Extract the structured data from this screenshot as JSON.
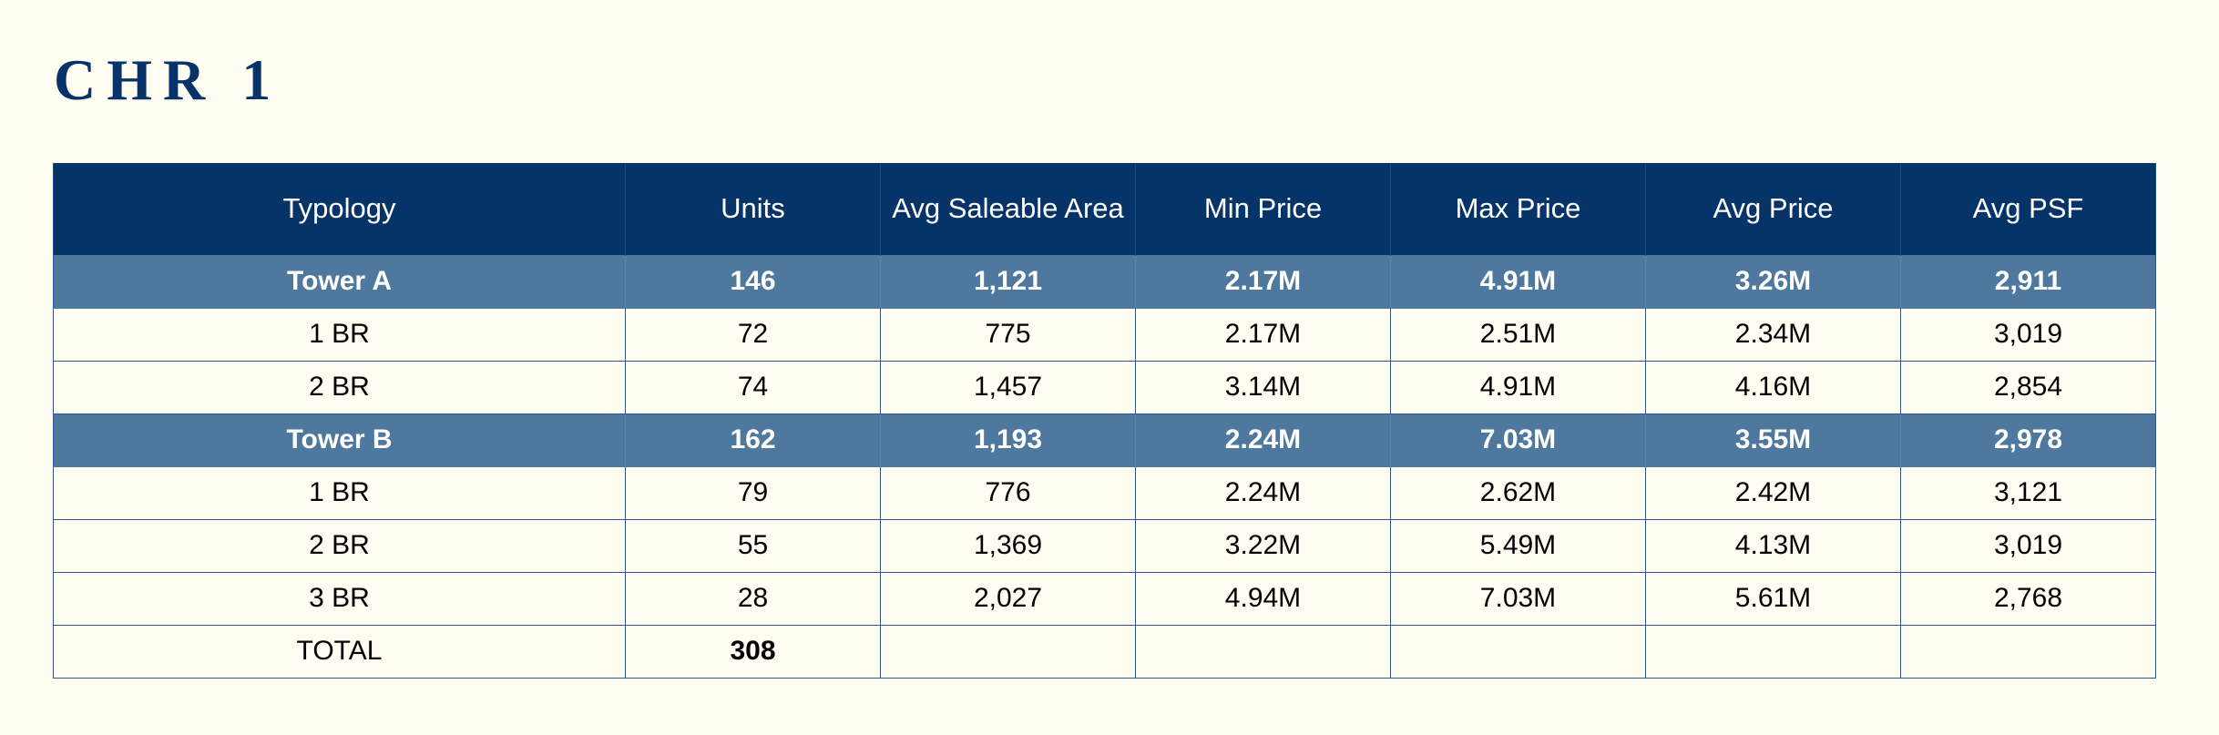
{
  "page": {
    "title": "CHR 1"
  },
  "colors": {
    "background": "#fffdf1",
    "header_bg": "#073468",
    "group_bg": "#4e789d",
    "title": "#08336a"
  },
  "table": {
    "headers": [
      "Typology",
      "Units",
      "Avg Saleable Area",
      "Min Price",
      "Max Price",
      "Avg Price",
      "Avg PSF"
    ],
    "rows": [
      [
        "Tower A",
        "146",
        "1,121",
        "2.17M",
        "4.91M",
        "3.26M",
        "2,911"
      ],
      [
        "1 BR",
        "72",
        "775",
        "2.17M",
        "2.51M",
        "2.34M",
        "3,019"
      ],
      [
        "2 BR",
        "74",
        "1,457",
        "3.14M",
        "4.91M",
        "4.16M",
        "2,854"
      ],
      [
        "Tower B",
        "162",
        "1,193",
        "2.24M",
        "7.03M",
        "3.55M",
        "2,978"
      ],
      [
        "1 BR",
        "79",
        "776",
        "2.24M",
        "2.62M",
        "2.42M",
        "3,121"
      ],
      [
        "2 BR",
        "55",
        "1,369",
        "3.22M",
        "5.49M",
        "4.13M",
        "3,019"
      ],
      [
        "3 BR",
        "28",
        "2,027",
        "4.94M",
        "7.03M",
        "5.61M",
        "2,768"
      ]
    ],
    "total": {
      "label": "TOTAL",
      "units": "308"
    }
  }
}
